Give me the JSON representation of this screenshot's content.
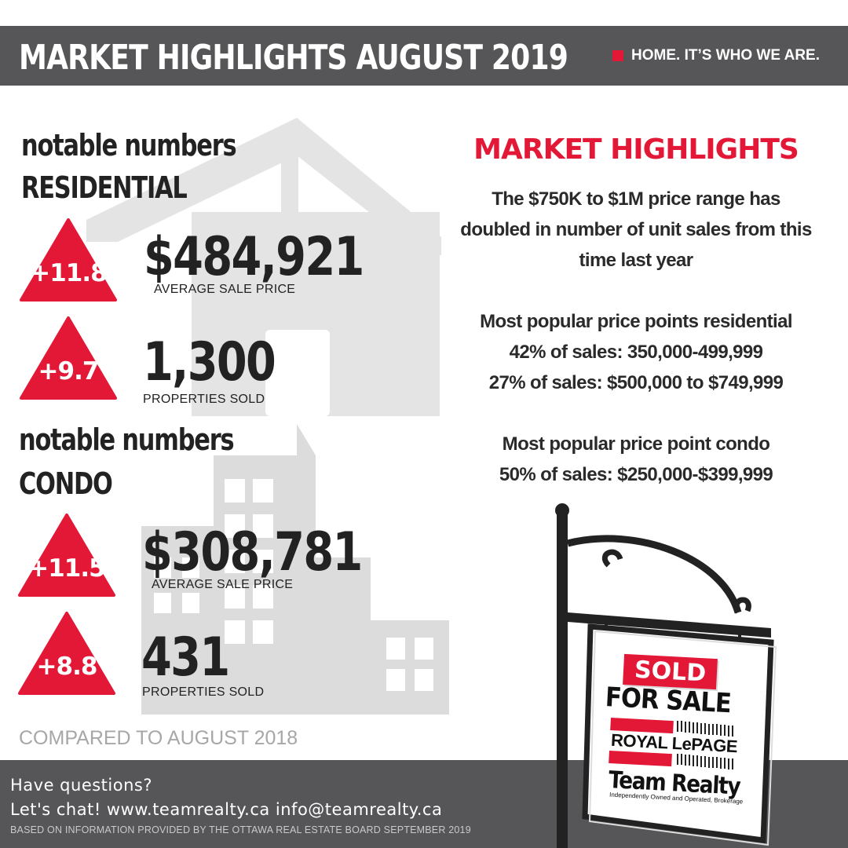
{
  "header": {
    "title": "MARKET HIGHLIGHTS  AUGUST  2019",
    "tagline": "HOME. IT’S WHO WE ARE."
  },
  "residential": {
    "heading_line1": "notable numbers",
    "heading_line2": "RESIDENTIAL",
    "average_price": {
      "change": "+11.8",
      "value": "$484,921",
      "label": "AVERAGE SALE PRICE"
    },
    "properties_sold": {
      "change": "+9.7",
      "value": "1,300",
      "label": "PROPERTIES SOLD"
    }
  },
  "condo": {
    "heading_line1": "notable numbers",
    "heading_line2": "CONDO",
    "average_price": {
      "change": "+11.5",
      "value": "$308,781",
      "label": "AVERAGE SALE PRICE"
    },
    "properties_sold": {
      "change": "+8.8",
      "value": "431",
      "label": "PROPERTIES SOLD"
    }
  },
  "compared": "COMPARED TO AUGUST 2018",
  "highlights": {
    "title": "MARKET HIGHLIGHTS",
    "lines": [
      "The $750K to $1M price range has",
      "doubled in number of unit sales from this",
      "time last year",
      "Most popular price points residential",
      "42% of sales: 350,000-499,999",
      "27% of sales: $500,000 to $749,999",
      "Most popular price point condo",
      "50% of sales: $250,000-$399,999"
    ]
  },
  "sign": {
    "sold": "SOLD",
    "for_sale": "FOR SALE",
    "brand_line1": "ROYAL LePAGE",
    "brand_line2": "Team Realty",
    "brand_tagline": "Independently Owned and Operated, Brokerage"
  },
  "footer": {
    "line1": "Have questions?",
    "line2": "Let's chat! www.teamrealty.ca info@teamrealty.ca",
    "source": "BASED ON INFORMATION PROVIDED BY THE OTTAWA REAL ESTATE BOARD SEPTEMBER 2019"
  },
  "colors": {
    "accent": "#e31837",
    "header_bg": "#565658",
    "text": "#222222",
    "muted": "#a7a7a7"
  }
}
